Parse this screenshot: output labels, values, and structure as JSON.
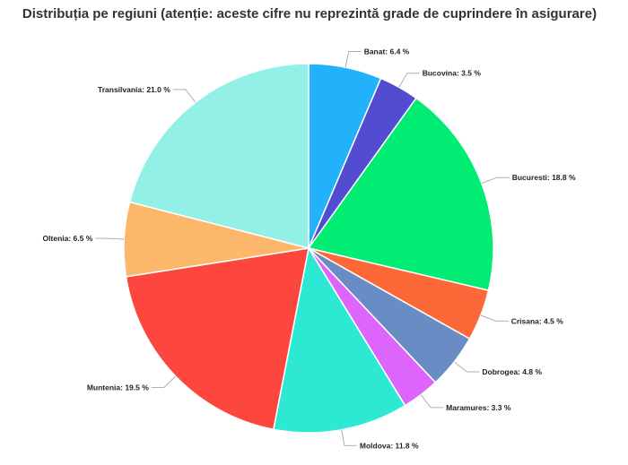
{
  "chart_data": {
    "type": "pie",
    "title": "Distribuția pe regiuni (atenție: aceste cifre nu reprezintă grade de cuprindere în asigurare)",
    "unit": "%",
    "slices": [
      {
        "name": "Banat",
        "value": 6.4,
        "label": "Banat: 6.4 %",
        "color": "#22b1fb"
      },
      {
        "name": "Bucovina",
        "value": 3.5,
        "label": "Bucovina: 3.5 %",
        "color": "#524dd0"
      },
      {
        "name": "Bucuresti",
        "value": 18.8,
        "label": "Bucuresti: 18.8 %",
        "color": "#00ec72"
      },
      {
        "name": "Crisana",
        "value": 4.5,
        "label": "Crisana: 4.5 %",
        "color": "#fd6839"
      },
      {
        "name": "Dobrogea",
        "value": 4.8,
        "label": "Dobrogea: 4.8 %",
        "color": "#6a8cc4"
      },
      {
        "name": "Maramures",
        "value": 3.3,
        "label": "Maramures: 3.3 %",
        "color": "#dd65fb"
      },
      {
        "name": "Moldova",
        "value": 11.8,
        "label": "Moldova: 11.8 %",
        "color": "#2de9d4"
      },
      {
        "name": "Muntenia",
        "value": 19.5,
        "label": "Muntenia: 19.5 %",
        "color": "#fd463d"
      },
      {
        "name": "Oltenia",
        "value": 6.5,
        "label": "Oltenia: 6.5 %",
        "color": "#fdb76a"
      },
      {
        "name": "Transilvania",
        "value": 21.0,
        "label": "Transilvania: 21.0 %",
        "color": "#93f0e7"
      }
    ]
  }
}
